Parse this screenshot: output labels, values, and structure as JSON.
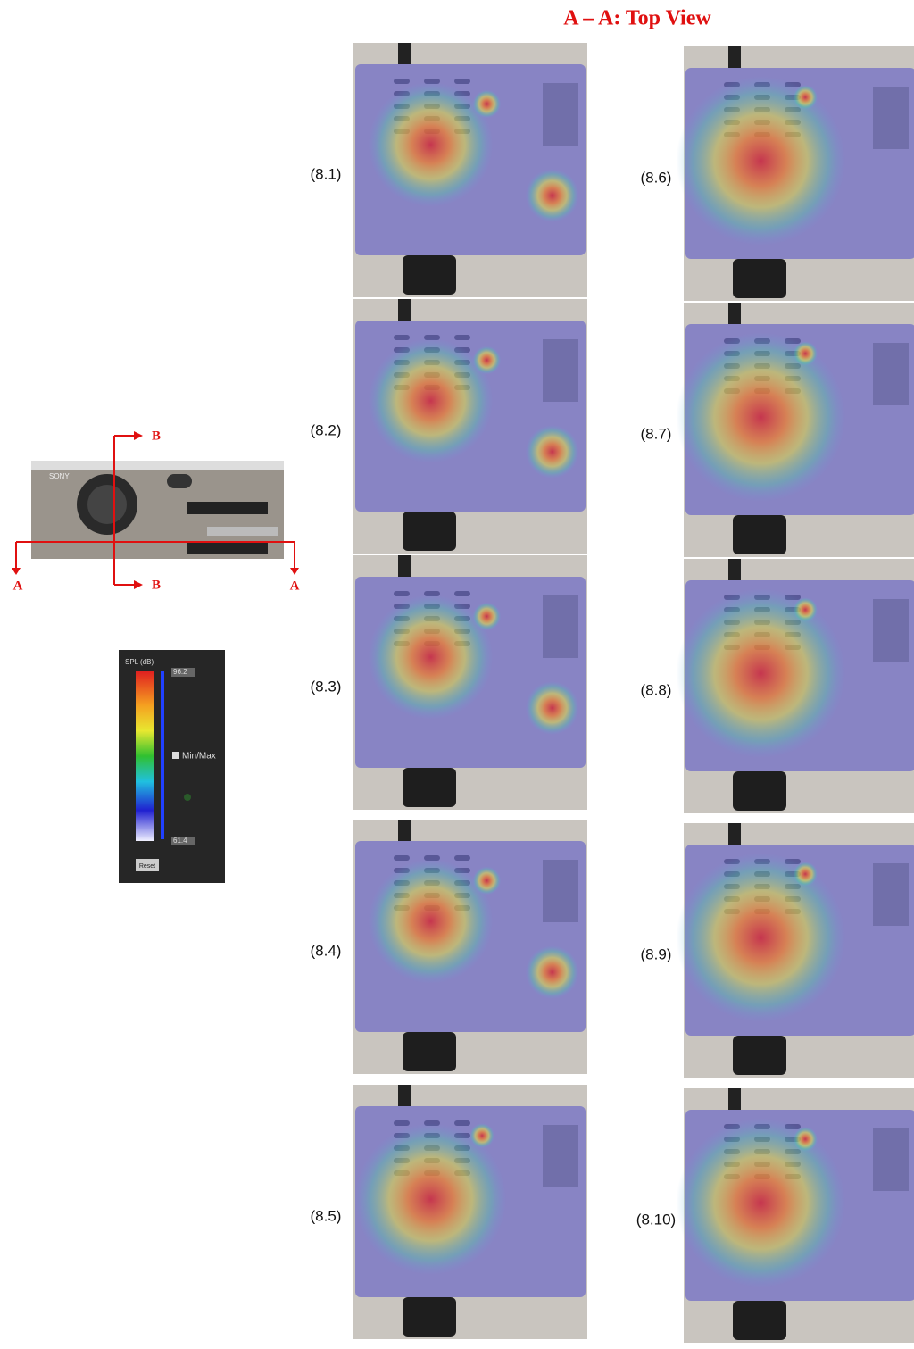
{
  "title": "A – A: Top View",
  "section_labels": {
    "a_left": "A",
    "a_right": "A",
    "b_top": "B",
    "b_bottom": "B"
  },
  "projector": {
    "brand": "SONY"
  },
  "colorbar": {
    "title": "SPL (dB)",
    "max": "96.2",
    "min": "61.4",
    "toggle": "Min/Max",
    "button": "Reset"
  },
  "panels": [
    {
      "label": "(8.1)"
    },
    {
      "label": "(8.2)"
    },
    {
      "label": "(8.3)"
    },
    {
      "label": "(8.4)"
    },
    {
      "label": "(8.5)"
    },
    {
      "label": "(8.6)"
    },
    {
      "label": "(8.7)"
    },
    {
      "label": "(8.8)"
    },
    {
      "label": "(8.9)"
    },
    {
      "label": "(8.10)"
    }
  ]
}
